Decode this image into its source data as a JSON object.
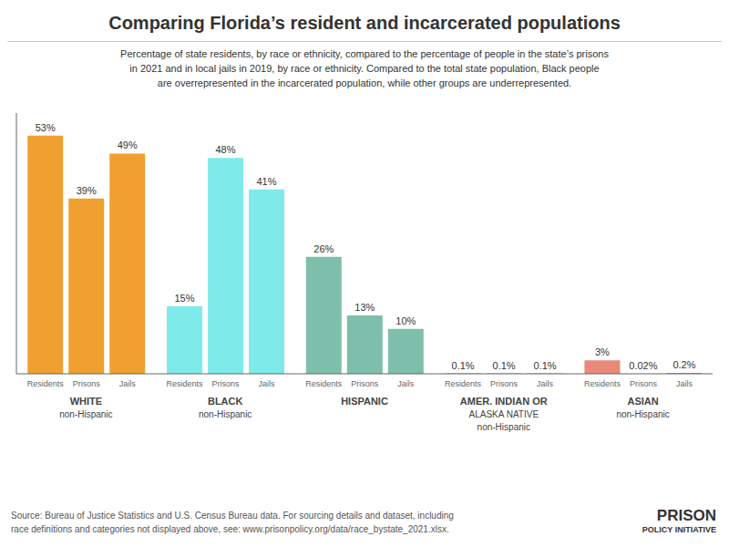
{
  "chart_data": {
    "type": "bar",
    "title": "Comparing Florida’s resident and incarcerated populations",
    "subtitle": "Percentage of state residents, by race or ethnicity, compared to the percentage of people in the state’s prisons\nin 2021 and in local jails in 2019, by race or ethnicity. Compared to the total state population, Black people\nare overrepresented in the incarcerated population, while other groups are underrepresented.",
    "source": "Source: Bureau of Justice Statistics and U.S. Census Bureau data. For sourcing details and dataset, including\nrace definitions and categories not displayed above, see: www.prisonpolicy.org/data/race_bystate_2021.xlsx.",
    "annotations": [
      "PRISON",
      "POLICY INITIATIVE"
    ],
    "categories": [
      "WHITE\nnon-Hispanic",
      "BLACK\nnon-Hispanic",
      "HISPANIC",
      "AMER. INDIAN OR\nALASKA NATIVE\nnon-Hispanic",
      "ASIAN\nnon-Hispanic"
    ],
    "colors": [
      "#f0a030",
      "#7eeaea",
      "#7dbfaa",
      "#aaaaaa",
      "#e8897a"
    ],
    "series": [
      {
        "name": "Residents",
        "values": [
          53,
          15,
          26,
          0.1,
          3
        ],
        "value_labels": [
          "53%",
          "15%",
          "26%",
          "0.1%",
          "3%"
        ]
      },
      {
        "name": "Prisons",
        "values": [
          39,
          48,
          13,
          0.1,
          0.02
        ],
        "value_labels": [
          "39%",
          "48%",
          "13%",
          "0.1%",
          "0.02%"
        ]
      },
      {
        "name": "Jails",
        "values": [
          49,
          41,
          10,
          0.1,
          0.2
        ],
        "value_labels": [
          "49%",
          "41%",
          "10%",
          "0.1%",
          "0.2%"
        ]
      }
    ],
    "ylim": [
      0,
      58
    ],
    "data_labels": true,
    "tick_labels": "x"
  }
}
